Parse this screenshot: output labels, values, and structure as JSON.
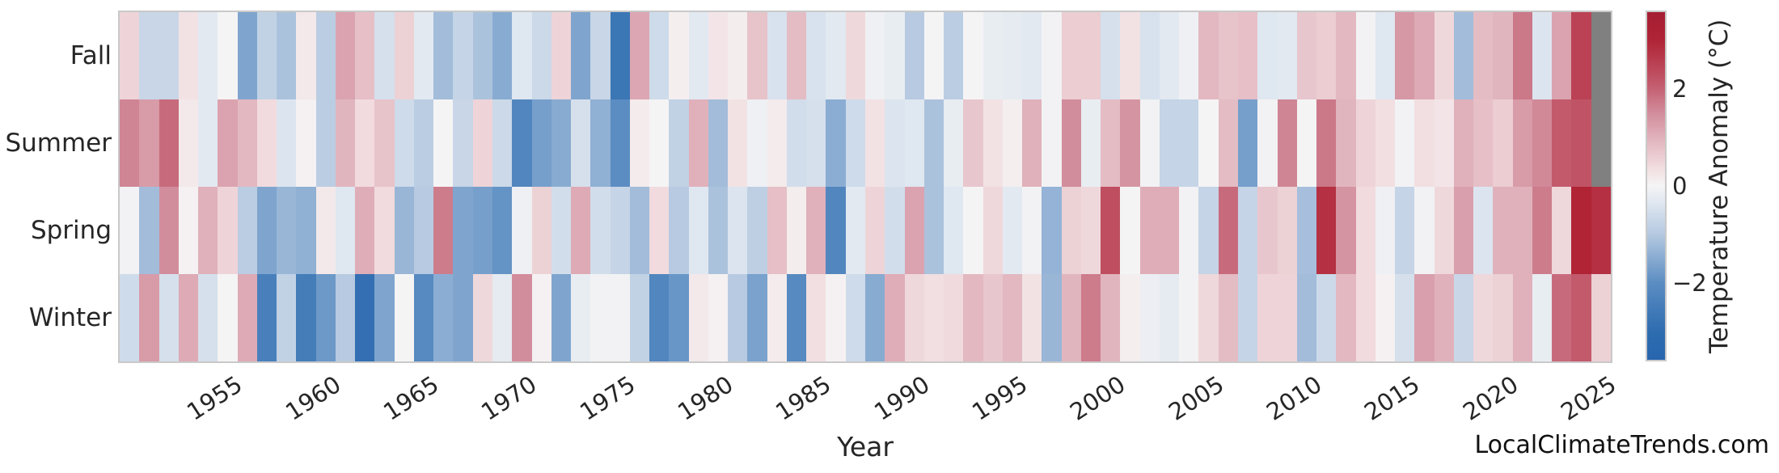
{
  "watermark": "LocalClimateTrends.com",
  "colors": {
    "background": "#ffffff",
    "frame": "#c9c9c9",
    "text": "#262626",
    "missing_cell": "#808080",
    "colormap_stops": [
      [
        -3.58,
        "#2765ae"
      ],
      [
        -3.0,
        "#2e6cb0"
      ],
      [
        -2.0,
        "#5b8dc2"
      ],
      [
        -1.0,
        "#b4c8e0"
      ],
      [
        -0.35,
        "#dfe7f0"
      ],
      [
        0.0,
        "#f5f4f5"
      ],
      [
        0.35,
        "#f2dfe1"
      ],
      [
        1.0,
        "#e0b1bb"
      ],
      [
        1.5,
        "#d28d9c"
      ],
      [
        2.1,
        "#c25a6c"
      ],
      [
        3.0,
        "#b02436"
      ],
      [
        3.58,
        "#a51e32"
      ]
    ]
  },
  "chart_data": {
    "type": "heatmap",
    "title": "",
    "xlabel": "Year",
    "ylabel": "",
    "colorbar_label": "Temperature Anomaly (°C)",
    "colorbar_ticks": [
      {
        "value": 2,
        "label": "2"
      },
      {
        "value": 0,
        "label": "0"
      },
      {
        "value": -2,
        "label": "−2"
      }
    ],
    "vmin": -3.58,
    "vmax": 3.58,
    "year_start": 1950,
    "year_end": 2025,
    "x_tick_labels": [
      "1955",
      "1960",
      "1965",
      "1970",
      "1975",
      "1980",
      "1985",
      "1990",
      "1995",
      "2000",
      "2005",
      "2010",
      "2015",
      "2020",
      "2025"
    ],
    "categories_note": "columns are years 1950-2025; null = missing data (gray cell)",
    "rows": [
      "Fall",
      "Summer",
      "Spring",
      "Winter"
    ],
    "series": [
      {
        "name": "Fall",
        "values": [
          0.5,
          -0.7,
          -0.7,
          0.3,
          -0.3,
          0.0,
          -1.6,
          -0.8,
          -1.1,
          0.2,
          -0.9,
          1.2,
          0.8,
          -0.5,
          0.55,
          -0.3,
          -1.2,
          -0.75,
          -1.1,
          -1.5,
          -0.35,
          -0.65,
          0.5,
          -1.6,
          -0.7,
          -2.7,
          1.15,
          -0.6,
          0.1,
          -0.3,
          0.25,
          0.12,
          0.75,
          -0.45,
          0.85,
          -0.45,
          -0.3,
          0.45,
          -0.1,
          -0.2,
          -0.95,
          0.0,
          -0.9,
          0.0,
          -0.2,
          -0.25,
          -0.3,
          -0.05,
          0.6,
          0.6,
          -0.5,
          0.3,
          -0.45,
          -0.3,
          -0.1,
          0.9,
          0.75,
          0.8,
          -0.35,
          -0.3,
          0.7,
          0.6,
          0.9,
          -0.05,
          -0.35,
          1.35,
          1.1,
          0.45,
          -1.2,
          0.85,
          0.95,
          1.75,
          -0.4,
          1.2,
          2.5,
          null
        ]
      },
      {
        "name": "Summer",
        "values": [
          1.6,
          1.3,
          1.9,
          0.2,
          -0.3,
          1.2,
          0.9,
          0.4,
          -0.4,
          0.05,
          -0.9,
          0.95,
          0.4,
          0.75,
          -0.6,
          -0.9,
          0.0,
          -0.7,
          0.5,
          -0.65,
          -2.2,
          -1.7,
          -1.5,
          -0.5,
          -1.4,
          -2.0,
          0.15,
          0.0,
          -0.8,
          1.0,
          -1.2,
          0.3,
          -0.1,
          0.15,
          -0.55,
          -0.5,
          -1.45,
          -0.6,
          0.3,
          -0.4,
          -0.35,
          -1.1,
          -0.2,
          0.7,
          0.3,
          0.1,
          1.0,
          -0.05,
          1.5,
          -0.2,
          0.85,
          1.4,
          -0.05,
          -0.75,
          -0.75,
          0.0,
          0.85,
          -1.7,
          -0.05,
          1.6,
          0.0,
          1.75,
          0.95,
          0.5,
          0.35,
          -0.05,
          0.35,
          0.25,
          1.0,
          0.8,
          0.6,
          1.3,
          1.55,
          2.1,
          2.2,
          null
        ]
      },
      {
        "name": "Spring",
        "values": [
          -0.05,
          -1.2,
          1.5,
          0.05,
          1.0,
          0.5,
          -0.9,
          -1.6,
          -1.3,
          -1.4,
          0.2,
          -0.35,
          1.05,
          0.4,
          -1.3,
          -0.95,
          1.7,
          -1.6,
          -1.7,
          -1.9,
          -0.1,
          0.55,
          -0.55,
          1.1,
          -0.55,
          -0.75,
          -1.2,
          0.4,
          -0.95,
          -0.35,
          -1.1,
          -0.4,
          -0.85,
          0.8,
          0.12,
          1.0,
          -2.2,
          -0.3,
          0.5,
          -0.55,
          1.2,
          -1.1,
          -0.35,
          0.0,
          0.45,
          -0.3,
          -0.05,
          -1.35,
          0.55,
          0.45,
          2.3,
          0.0,
          1.05,
          1.05,
          -0.05,
          -0.75,
          1.9,
          -0.75,
          0.7,
          0.55,
          -1.15,
          2.8,
          1.4,
          0.4,
          -0.1,
          -0.75,
          -0.05,
          0.45,
          1.25,
          -0.4,
          1.0,
          1.0,
          1.7,
          0.45,
          3.0,
          2.8
        ]
      },
      {
        "name": "Winter",
        "values": [
          -0.6,
          1.3,
          -0.5,
          1.1,
          -0.5,
          0.0,
          1.1,
          -2.4,
          -0.8,
          -2.5,
          -1.8,
          -0.95,
          -2.9,
          -1.6,
          0.0,
          -2.1,
          -1.45,
          -1.6,
          0.45,
          -0.25,
          1.5,
          0.05,
          -1.6,
          -0.2,
          -0.05,
          -0.05,
          -0.8,
          -2.2,
          -1.85,
          0.2,
          0.05,
          -0.95,
          -1.65,
          0.15,
          -2.1,
          0.35,
          0.05,
          -0.6,
          -1.5,
          1.05,
          0.45,
          0.35,
          0.42,
          0.9,
          0.7,
          0.9,
          0.3,
          -1.3,
          0.95,
          1.7,
          0.95,
          0.1,
          -0.15,
          -0.25,
          -0.05,
          0.45,
          0.85,
          -0.75,
          0.5,
          0.5,
          -1.2,
          -0.65,
          0.9,
          0.4,
          0.05,
          -0.5,
          1.25,
          1.0,
          -0.7,
          0.45,
          0.55,
          1.0,
          -0.2,
          1.9,
          2.1,
          0.55
        ]
      }
    ],
    "legend_position": "right-colorbar",
    "grid": false
  }
}
